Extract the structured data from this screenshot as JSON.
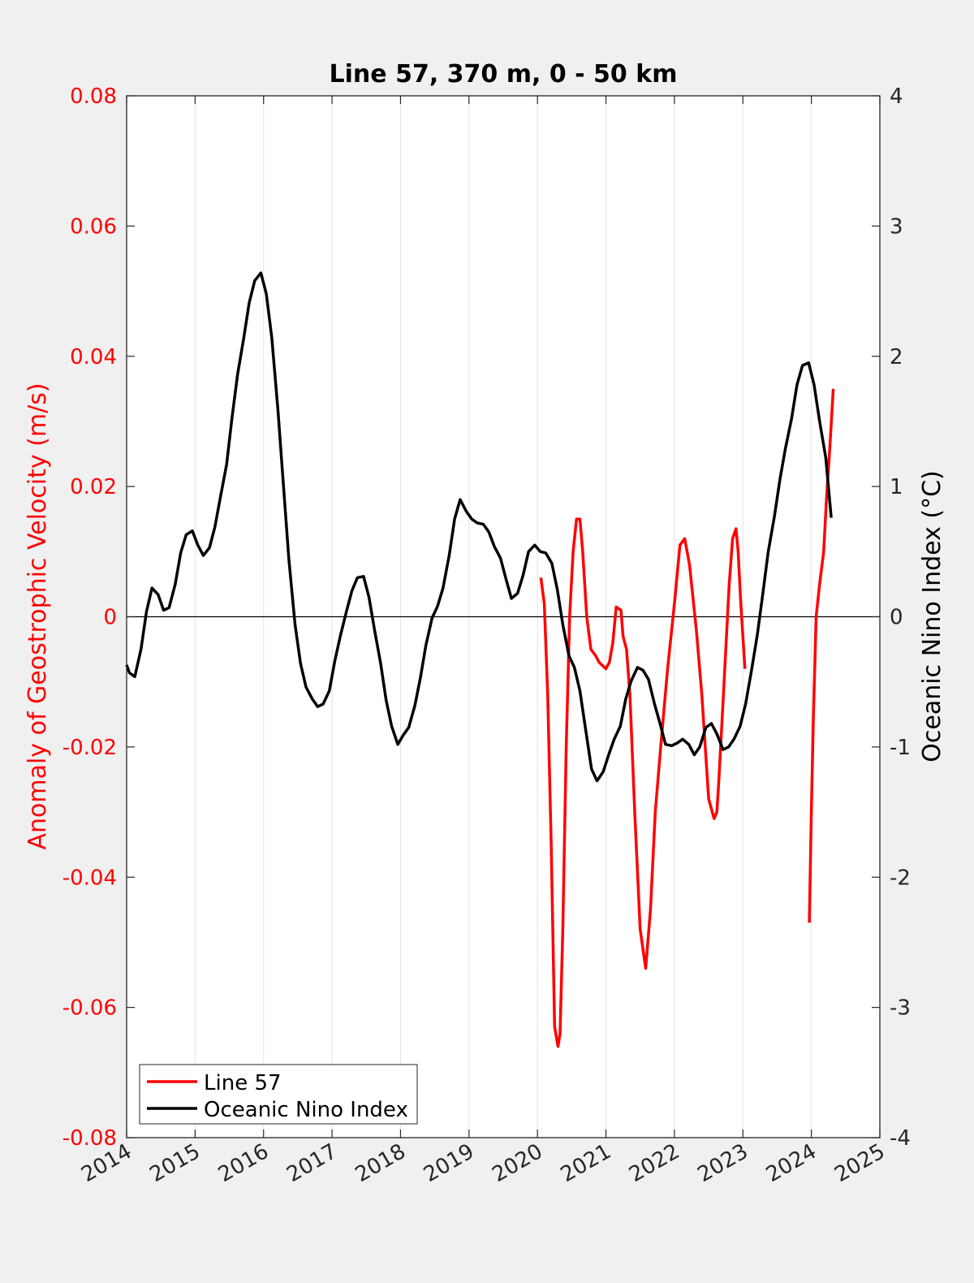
{
  "chart_data": {
    "type": "line",
    "title": "Line 57, 370 m, 0 - 50 km",
    "xlabel": "",
    "ylabel": "Anomaly of Geostrophic Velocity (m/s)",
    "ylabel_right": "Oceanic Nino Index (°C)",
    "xlim": [
      2014,
      2025
    ],
    "ylim": [
      -0.08,
      0.08
    ],
    "ylim_right": [
      -4,
      4
    ],
    "x_ticks": [
      2014,
      2015,
      2016,
      2017,
      2018,
      2019,
      2020,
      2021,
      2022,
      2023,
      2024,
      2025
    ],
    "x_tick_labels": [
      "2014",
      "2015",
      "2016",
      "2017",
      "2018",
      "2019",
      "2020",
      "2021",
      "2022",
      "2023",
      "2024",
      "2025"
    ],
    "y_ticks": [
      -0.08,
      -0.06,
      -0.04,
      -0.02,
      0,
      0.02,
      0.04,
      0.06,
      0.08
    ],
    "y_tick_labels": [
      "-0.08",
      "-0.06",
      "-0.04",
      "-0.02",
      "0",
      "0.02",
      "0.04",
      "0.06",
      "0.08"
    ],
    "y_ticks_right": [
      -4,
      -3,
      -2,
      -1,
      0,
      1,
      2,
      3,
      4
    ],
    "y_tick_labels_right": [
      "-4",
      "-3",
      "-2",
      "-1",
      "0",
      "1",
      "2",
      "3",
      "4"
    ],
    "grid_x": true,
    "legend_position": "bottom-left",
    "colors": {
      "line57": "#ff0000",
      "oni": "#000000",
      "axis": "#262626",
      "left_axis": "#ff0000"
    },
    "series": [
      {
        "name": "Line 57",
        "axis": "left",
        "color": "#ff0000",
        "segments": [
          {
            "x": [
              2020.05,
              2020.1,
              2020.15,
              2020.2,
              2020.25,
              2020.3,
              2020.33,
              2020.37,
              2020.42,
              2020.47,
              2020.52,
              2020.57,
              2020.62,
              2020.66,
              2020.72,
              2020.78,
              2020.85,
              2020.9,
              2020.95,
              2021.0,
              2021.05,
              2021.1,
              2021.15,
              2021.22,
              2021.25,
              2021.3,
              2021.35,
              2021.42,
              2021.5,
              2021.58,
              2021.65,
              2021.72,
              2021.8,
              2021.9,
              2022.0,
              2022.08,
              2022.15,
              2022.22,
              2022.25,
              2022.32,
              2022.4,
              2022.5,
              2022.58,
              2022.62,
              2022.65,
              2022.7,
              2022.75,
              2022.8,
              2022.85,
              2022.9,
              2022.93,
              2022.97,
              2023.03
            ],
            "y": [
              0.006,
              0.002,
              -0.012,
              -0.035,
              -0.063,
              -0.066,
              -0.064,
              -0.048,
              -0.02,
              0.0,
              0.01,
              0.015,
              0.015,
              0.01,
              0.0,
              -0.005,
              -0.006,
              -0.007,
              -0.0075,
              -0.008,
              -0.007,
              -0.004,
              0.0015,
              0.001,
              -0.003,
              -0.005,
              -0.012,
              -0.03,
              -0.048,
              -0.054,
              -0.045,
              -0.03,
              -0.02,
              -0.008,
              0.002,
              0.011,
              0.012,
              0.008,
              0.005,
              -0.002,
              -0.012,
              -0.028,
              -0.031,
              -0.03,
              -0.025,
              -0.015,
              -0.005,
              0.005,
              0.012,
              0.0135,
              0.01,
              0.002,
              -0.008
            ]
          },
          {
            "x": [
              2023.97,
              2024.0,
              2024.03,
              2024.07,
              2024.12,
              2024.18,
              2024.22,
              2024.27,
              2024.32
            ],
            "y": [
              -0.047,
              -0.03,
              -0.015,
              0.0,
              0.005,
              0.01,
              0.018,
              0.026,
              0.035
            ]
          }
        ]
      },
      {
        "name": "Oceanic Nino Index",
        "axis": "right",
        "color": "#000000",
        "x": [
          2014.0,
          2014.04,
          2014.12,
          2014.21,
          2014.29,
          2014.37,
          2014.46,
          2014.54,
          2014.62,
          2014.71,
          2014.79,
          2014.87,
          2014.96,
          2015.04,
          2015.12,
          2015.21,
          2015.29,
          2015.37,
          2015.46,
          2015.54,
          2015.62,
          2015.71,
          2015.79,
          2015.87,
          2015.96,
          2016.04,
          2016.12,
          2016.21,
          2016.29,
          2016.37,
          2016.46,
          2016.54,
          2016.62,
          2016.71,
          2016.79,
          2016.87,
          2016.96,
          2017.04,
          2017.12,
          2017.21,
          2017.29,
          2017.37,
          2017.46,
          2017.54,
          2017.62,
          2017.71,
          2017.79,
          2017.87,
          2017.96,
          2018.04,
          2018.12,
          2018.21,
          2018.29,
          2018.37,
          2018.46,
          2018.54,
          2018.62,
          2018.71,
          2018.79,
          2018.87,
          2018.96,
          2019.04,
          2019.12,
          2019.21,
          2019.29,
          2019.37,
          2019.46,
          2019.54,
          2019.62,
          2019.71,
          2019.79,
          2019.87,
          2019.96,
          2020.04,
          2020.12,
          2020.21,
          2020.29,
          2020.37,
          2020.46,
          2020.54,
          2020.62,
          2020.71,
          2020.79,
          2020.87,
          2020.96,
          2021.04,
          2021.12,
          2021.21,
          2021.29,
          2021.37,
          2021.46,
          2021.54,
          2021.62,
          2021.71,
          2021.79,
          2021.87,
          2021.96,
          2022.04,
          2022.12,
          2022.21,
          2022.29,
          2022.37,
          2022.46,
          2022.54,
          2022.62,
          2022.71,
          2022.79,
          2022.87,
          2022.96,
          2023.04,
          2023.12,
          2023.21,
          2023.29,
          2023.37,
          2023.46,
          2023.54,
          2023.62,
          2023.71,
          2023.79,
          2023.87,
          2023.96,
          2024.04,
          2024.12,
          2024.21,
          2024.29
        ],
        "y": [
          -0.37,
          -0.43,
          -0.46,
          -0.25,
          0.04,
          0.22,
          0.17,
          0.05,
          0.07,
          0.25,
          0.49,
          0.63,
          0.66,
          0.55,
          0.47,
          0.53,
          0.69,
          0.92,
          1.17,
          1.53,
          1.86,
          2.14,
          2.41,
          2.58,
          2.64,
          2.48,
          2.14,
          1.59,
          1.01,
          0.44,
          -0.06,
          -0.36,
          -0.54,
          -0.63,
          -0.69,
          -0.67,
          -0.57,
          -0.34,
          -0.15,
          0.04,
          0.2,
          0.3,
          0.31,
          0.15,
          -0.1,
          -0.36,
          -0.64,
          -0.84,
          -0.98,
          -0.91,
          -0.85,
          -0.68,
          -0.47,
          -0.22,
          -0.01,
          0.08,
          0.22,
          0.47,
          0.75,
          0.9,
          0.81,
          0.75,
          0.72,
          0.71,
          0.65,
          0.54,
          0.45,
          0.29,
          0.14,
          0.18,
          0.32,
          0.5,
          0.55,
          0.5,
          0.49,
          0.41,
          0.21,
          -0.06,
          -0.3,
          -0.39,
          -0.57,
          -0.89,
          -1.17,
          -1.26,
          -1.19,
          -1.06,
          -0.94,
          -0.84,
          -0.63,
          -0.49,
          -0.39,
          -0.41,
          -0.48,
          -0.67,
          -0.82,
          -0.98,
          -0.99,
          -0.97,
          -0.94,
          -0.98,
          -1.06,
          -1.0,
          -0.85,
          -0.82,
          -0.9,
          -1.02,
          -1.0,
          -0.94,
          -0.84,
          -0.67,
          -0.43,
          -0.14,
          0.17,
          0.5,
          0.77,
          1.05,
          1.29,
          1.52,
          1.78,
          1.93,
          1.95,
          1.78,
          1.5,
          1.22,
          0.76
        ]
      }
    ]
  }
}
